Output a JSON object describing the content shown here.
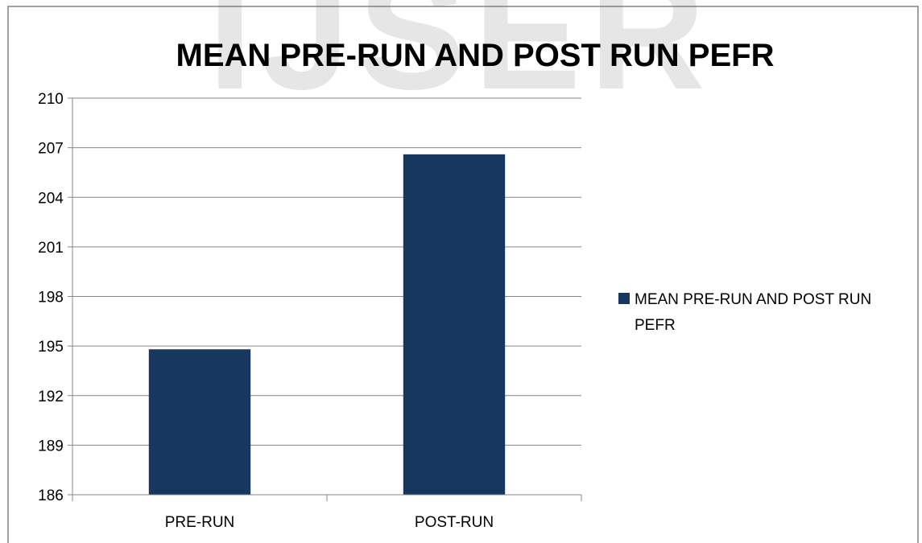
{
  "chart_data": {
    "type": "bar",
    "title": "MEAN PRE-RUN AND POST RUN PEFR",
    "categories": [
      "PRE-RUN",
      "POST-RUN"
    ],
    "series": [
      {
        "name": "MEAN PRE-RUN AND POST RUN PEFR",
        "values": [
          194.8,
          206.6
        ],
        "color": "#17375e"
      }
    ],
    "ylim": [
      186,
      210
    ],
    "yticks": [
      "186",
      "189",
      "192",
      "195",
      "198",
      "201",
      "204",
      "207",
      "210"
    ],
    "grid": true,
    "legend": "right",
    "legend_lines": [
      "MEAN PRE-RUN AND POST RUN",
      "PEFR"
    ]
  },
  "watermark": {
    "text": "IJSER",
    "color": "#e6e6e6"
  }
}
